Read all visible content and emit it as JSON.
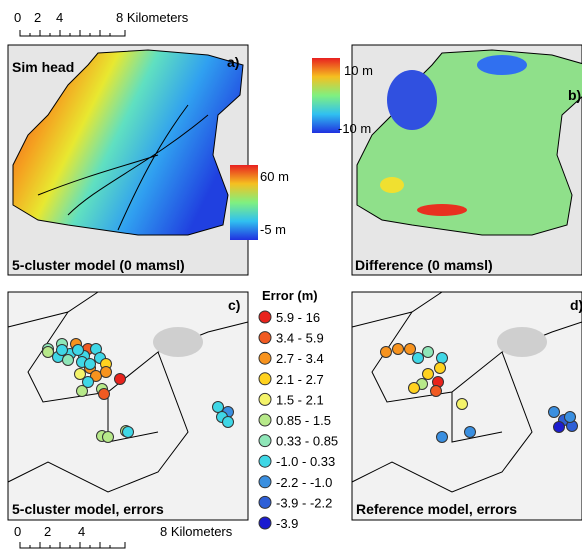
{
  "scale_bars": [
    [
      "0",
      "2",
      "4",
      "8 Kilometers"
    ],
    [
      "0",
      "2",
      "4",
      "8 Kilometers"
    ]
  ],
  "panels": [
    {
      "letter": "a)",
      "title": "Sim head",
      "caption": "5-cluster model (0 mamsl)",
      "colorbar": [
        "60 m",
        "-5 m"
      ]
    },
    {
      "letter": "b)",
      "caption": "Difference (0 mamsl)",
      "colorbar": [
        "10 m",
        "-10 m"
      ]
    },
    {
      "letter": "c)",
      "caption": "5-cluster model, errors"
    },
    {
      "letter": "d)",
      "caption": "Reference model, errors"
    }
  ],
  "legend": {
    "title": "Error (m)",
    "items": [
      {
        "label": "5.9 - 16",
        "color": "#e8231c"
      },
      {
        "label": "3.4 - 5.9",
        "color": "#f05a22"
      },
      {
        "label": "2.7 - 3.4",
        "color": "#f7931e"
      },
      {
        "label": "2.1 - 2.7",
        "color": "#ffd21f"
      },
      {
        "label": "1.5 - 2.1",
        "color": "#f4f36a"
      },
      {
        "label": "0.85 - 1.5",
        "color": "#b7e98a"
      },
      {
        "label": "0.33 - 0.85",
        "color": "#8fe6b8"
      },
      {
        "label": "-1.0 - 0.33",
        "color": "#3fd7e6"
      },
      {
        "label": "-2.2 - -1.0",
        "color": "#3a8fe0"
      },
      {
        "label": "-3.9 - -2.2",
        "color": "#2e5fd6"
      },
      {
        "label": "-3.9",
        "color": "#1c1ccf"
      }
    ]
  }
}
